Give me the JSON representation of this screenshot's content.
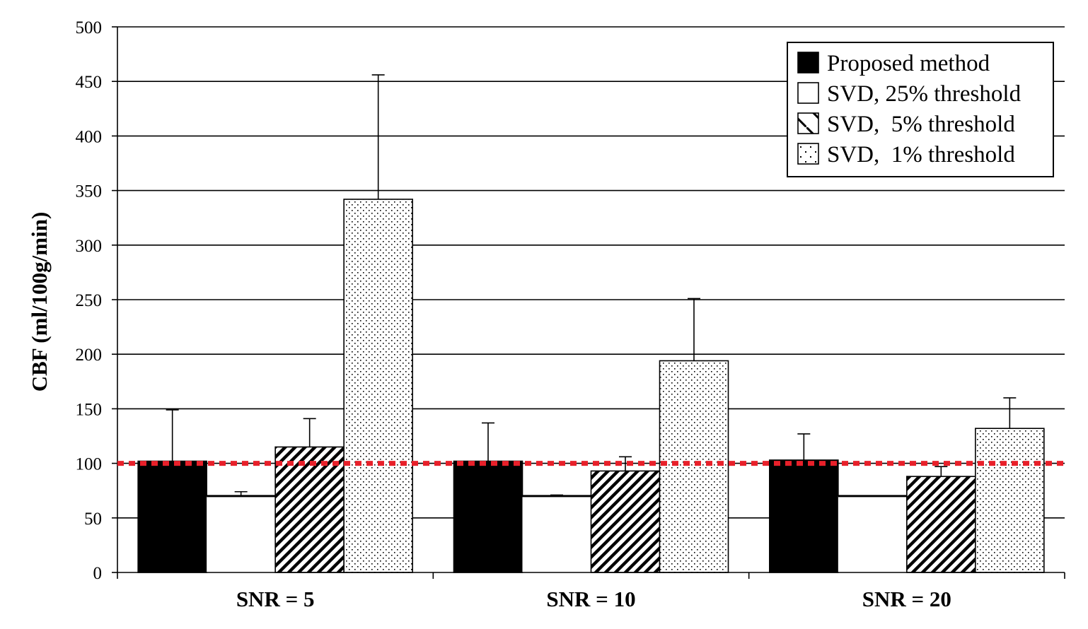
{
  "chart_data": {
    "type": "bar",
    "ylabel": "CBF (ml/100g/min)",
    "xlabel": "",
    "ylim": [
      0,
      500
    ],
    "yticks": [
      "0",
      "50",
      "100",
      "150",
      "200",
      "250",
      "300",
      "350",
      "400",
      "450",
      "500"
    ],
    "grid": true,
    "legend_position": "top-right",
    "reference_line": {
      "value": 100,
      "color": "#e8202a",
      "style": "dashed"
    },
    "categories": [
      "SNR = 5",
      "SNR = 10",
      "SNR = 20"
    ],
    "series": [
      {
        "name": "Proposed method",
        "fill": "solid-black",
        "values": [
          102,
          102,
          103
        ],
        "errors": [
          47,
          35,
          24
        ]
      },
      {
        "name": "SVD, 25% threshold",
        "fill": "white",
        "values": [
          70,
          70,
          70
        ],
        "errors": [
          4,
          1,
          0
        ]
      },
      {
        "name": "SVD,  5% threshold",
        "fill": "diagonal-hatch",
        "values": [
          115,
          93,
          88
        ],
        "errors": [
          26,
          13,
          9
        ]
      },
      {
        "name": "SVD,  1% threshold",
        "fill": "dots",
        "values": [
          342,
          194,
          132
        ],
        "errors": [
          114,
          57,
          28
        ]
      }
    ]
  }
}
